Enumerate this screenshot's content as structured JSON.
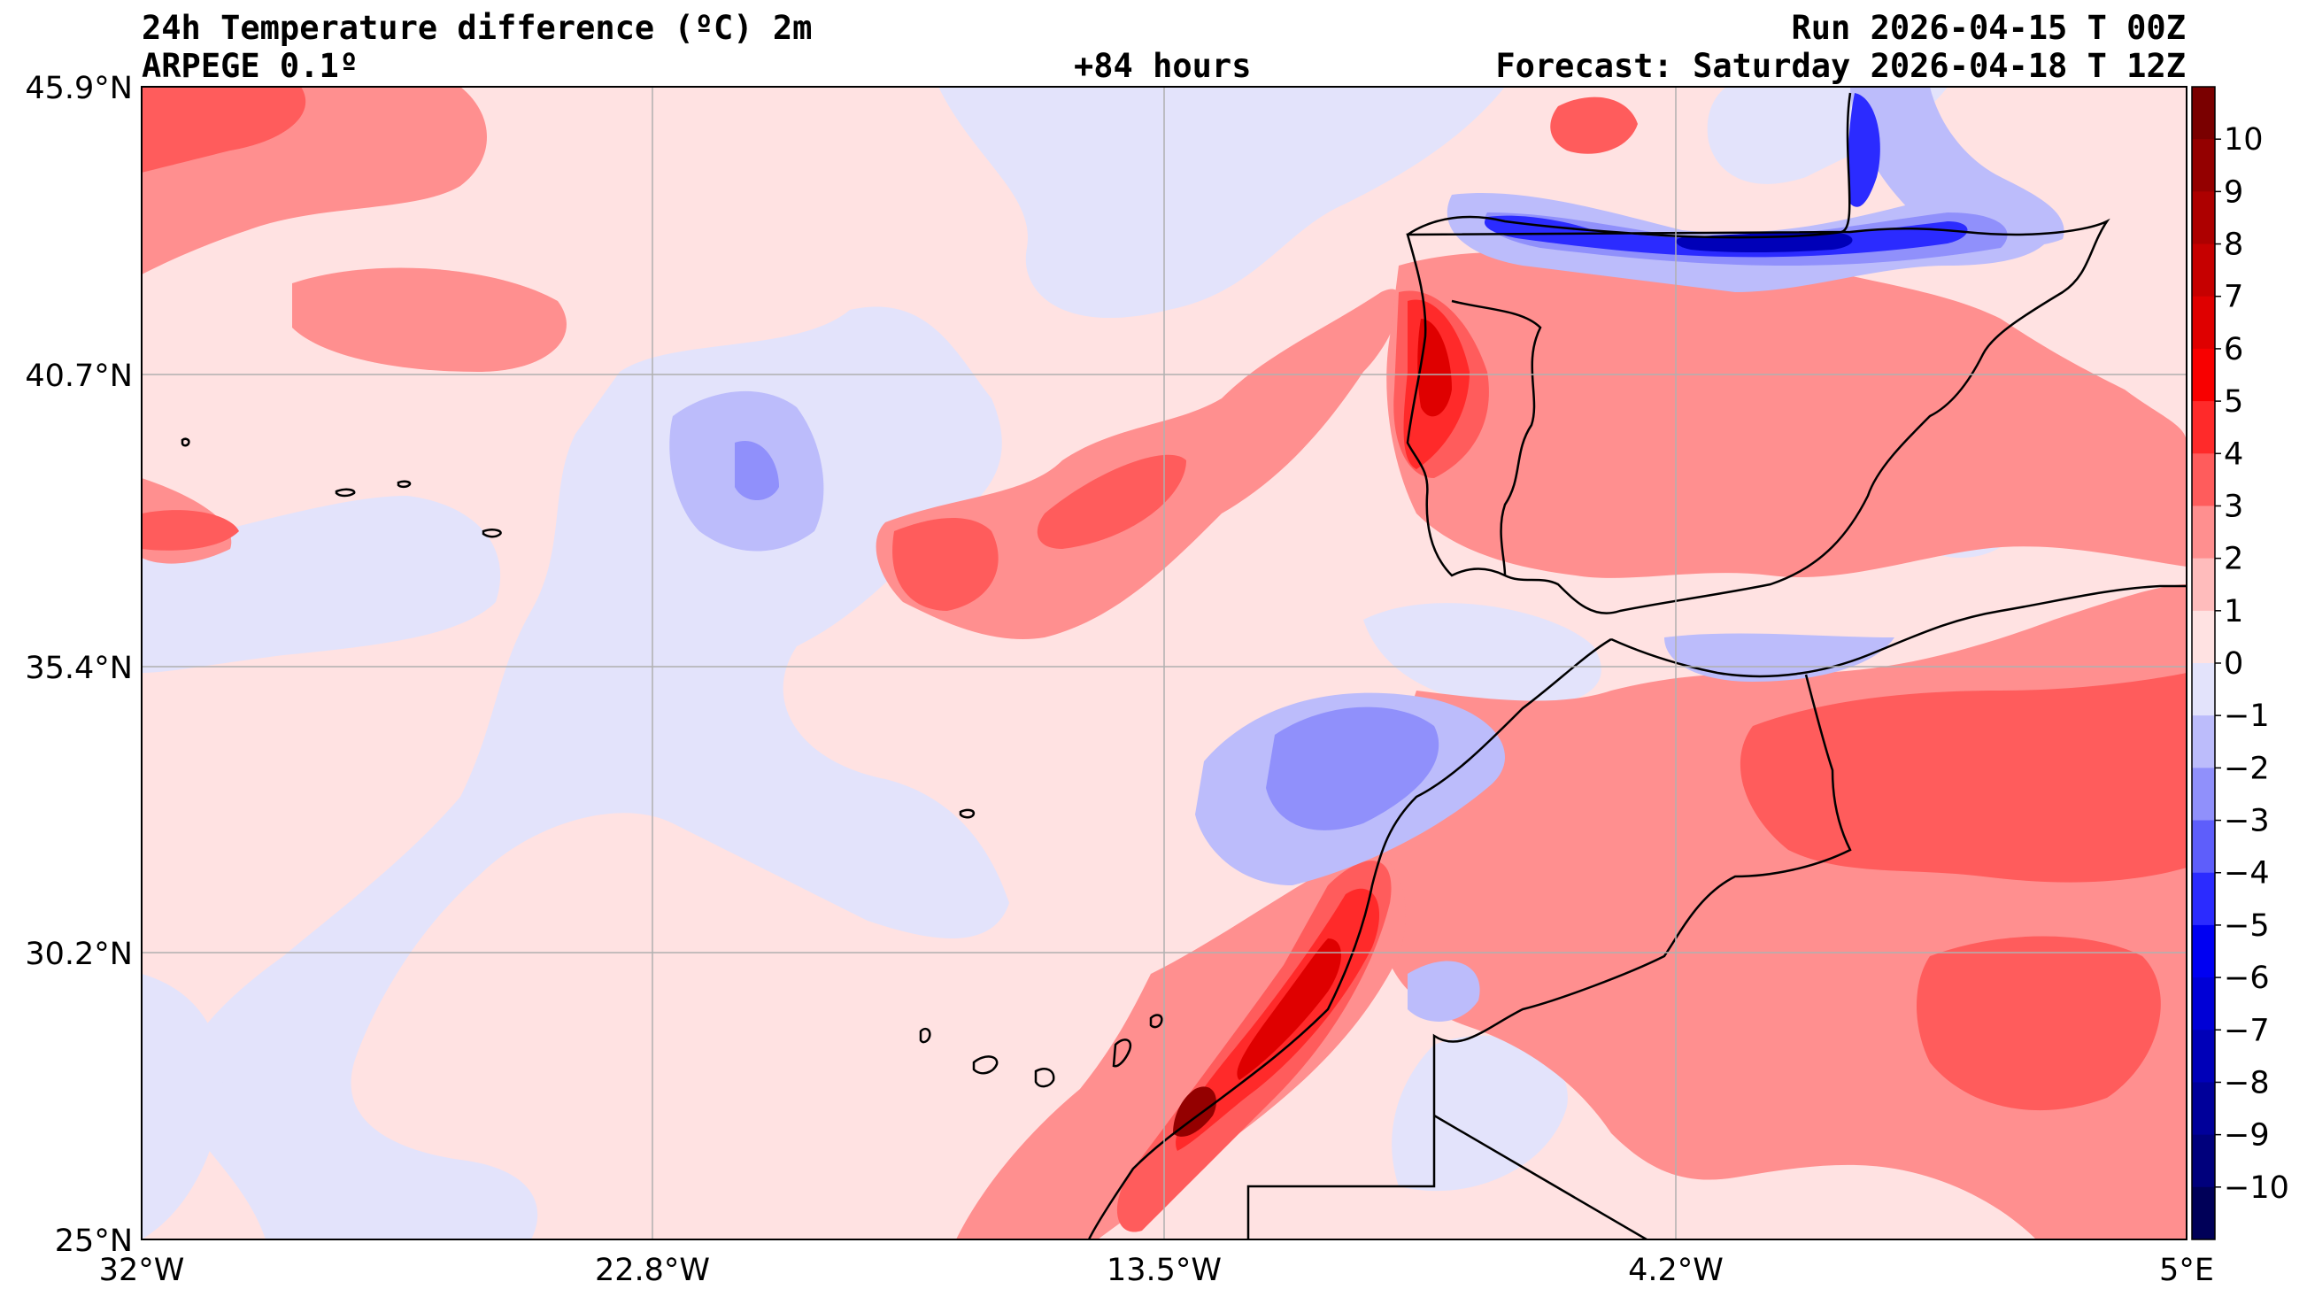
{
  "header": {
    "title": "24h Temperature difference (ºC) 2m",
    "model": "ARPEGE 0.1º",
    "lead_time": "+84 hours",
    "run": "Run 2026-04-15 T 00Z",
    "forecast": "Forecast: Saturday 2026-04-18 T 12Z"
  },
  "axes": {
    "lat_labels": [
      "45.9°N",
      "40.7°N",
      "35.4°N",
      "30.2°N",
      "25°N"
    ],
    "lon_labels": [
      "32°W",
      "22.8°W",
      "13.5°W",
      "4.2°W",
      "5°E"
    ]
  },
  "colorbar": {
    "levels": [
      "10",
      "9",
      "8",
      "7",
      "6",
      "5",
      "4",
      "3",
      "2",
      "1",
      "0",
      "−1",
      "−2",
      "−3",
      "−4",
      "−5",
      "−6",
      "−7",
      "−8",
      "−9",
      "−10"
    ],
    "colors": [
      "#7a0000",
      "#940000",
      "#ad0000",
      "#c60000",
      "#df0000",
      "#f80000",
      "#ff2a2a",
      "#ff5c5c",
      "#ff8f8f",
      "#ffbcbc",
      "#ffe2e2",
      "#e3e3fb",
      "#bcbcfb",
      "#9090fb",
      "#5e5efb",
      "#2b2bff",
      "#0000f2",
      "#0000d6",
      "#0000b8",
      "#00009a",
      "#00007c",
      "#000058"
    ]
  },
  "map_colors": {
    "ocean_light_red": "#ffe2e2",
    "light_blue": "#e3e3fb",
    "red2": "#ff8f8f",
    "red3": "#ff5c5c",
    "red4": "#ff2a2a",
    "red6": "#df0000",
    "dark_red": "#940000",
    "blue2": "#bcbcfb",
    "blue3": "#9090fb",
    "blue5": "#2b2bff",
    "blue8": "#0000b8",
    "coast": "#000000",
    "grid": "#b0b0b0"
  }
}
